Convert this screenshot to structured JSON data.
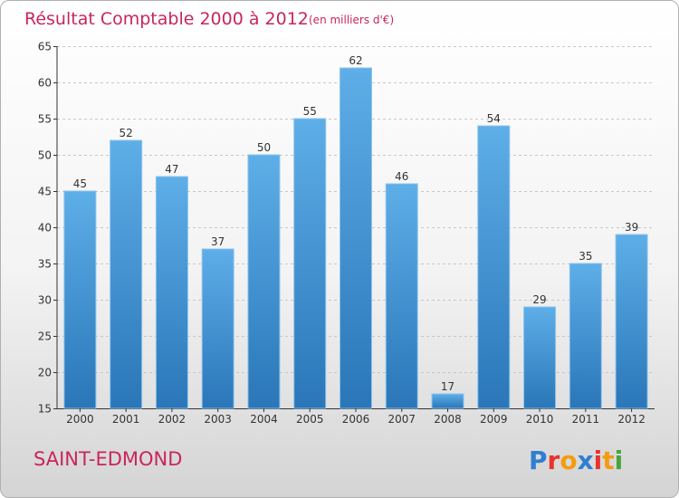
{
  "chart_data": {
    "type": "bar",
    "title": "Résultat Comptable 2000 à 2012",
    "subtitle": "(en milliers d'€)",
    "categories": [
      "2000",
      "2001",
      "2002",
      "2003",
      "2004",
      "2005",
      "2006",
      "2007",
      "2008",
      "2009",
      "2010",
      "2011",
      "2012"
    ],
    "values": [
      45,
      52,
      47,
      37,
      50,
      55,
      62,
      46,
      17,
      54,
      29,
      35,
      39
    ],
    "ylim": [
      15,
      65
    ],
    "yticks": [
      15,
      20,
      25,
      30,
      35,
      40,
      45,
      50,
      55,
      60,
      65
    ],
    "xlabel": "",
    "ylabel": "",
    "grid": true
  },
  "footer": {
    "commune": "SAINT-EDMOND",
    "logo_letters": [
      "P",
      "r",
      "o",
      "x",
      "i",
      "t",
      "i"
    ]
  },
  "colors": {
    "bar_light": "#5eaee8",
    "bar_dark": "#2a76b8",
    "title": "#c8265a",
    "logo": [
      "#2f7fd1",
      "#e8332c",
      "#f39c12",
      "#2f7fd1",
      "#e8332c",
      "#f39c12",
      "#45a63a"
    ]
  }
}
